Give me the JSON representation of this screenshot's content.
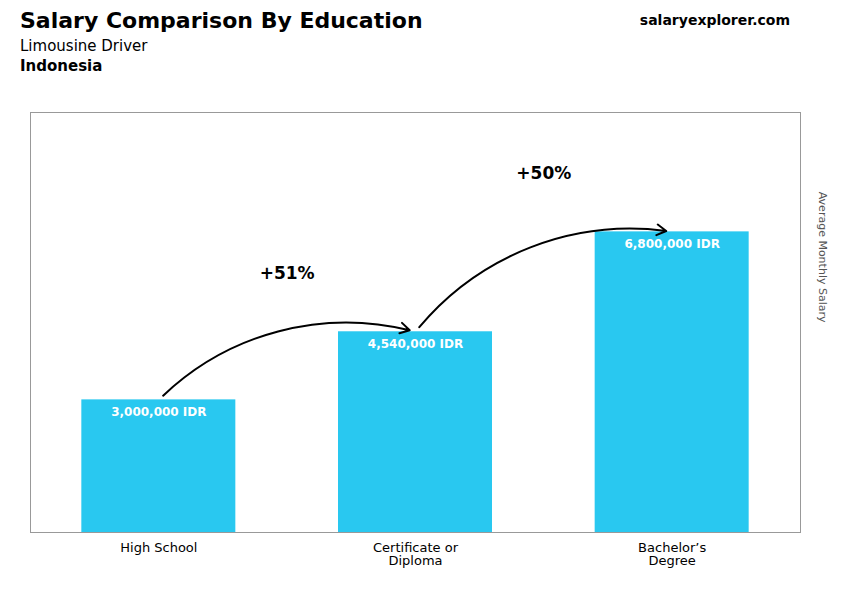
{
  "chart_data": {
    "type": "bar",
    "title": "Salary Comparison By Education",
    "subtitle": "Limousine Driver",
    "ylabel": "Average Monthly Salary",
    "categories": [
      "High School",
      "Certificate or\nDiploma",
      "Bachelor’s\nDegree"
    ],
    "values": [
      3000000,
      4540000,
      6800000
    ],
    "value_labels": [
      "3,000,000 IDR",
      "4,540,000 IDR",
      "6,800,000 IDR"
    ],
    "data_labels": true,
    "color": "#29c8f0",
    "ylim": [
      0,
      9500000
    ],
    "tick_labels": "x",
    "grid": false,
    "annotations": [
      {
        "text": "+51%",
        "from": "High School",
        "to": "Certificate or\nDiploma"
      },
      {
        "text": "+50%",
        "from": "Certificate or\nDiploma",
        "to": "Bachelor’s\nDegree"
      },
      {
        "text": "Indonesia"
      },
      {
        "text": "salaryexplorer.com"
      }
    ]
  }
}
